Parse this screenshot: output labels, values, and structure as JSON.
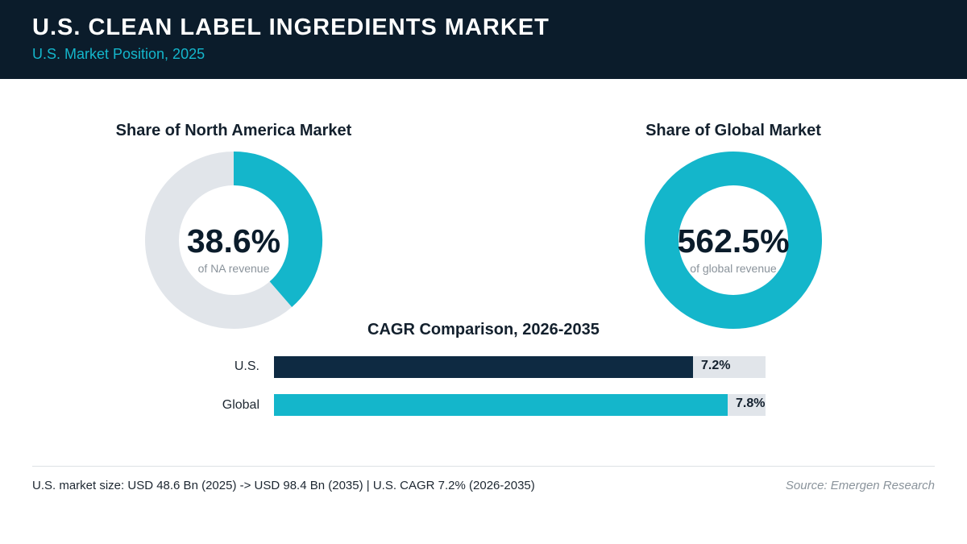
{
  "header": {
    "title": "U.S. CLEAN LABEL INGREDIENTS MARKET",
    "subtitle": "U.S. Market Position, 2025"
  },
  "colors": {
    "accent": "#14b6cb",
    "dark": "#0e2a42",
    "track": "#e1e5ea",
    "header_bg": "#0b1c2b"
  },
  "chart_data": [
    {
      "type": "pie",
      "title": "Share of North America Market",
      "value_label": "38.6%",
      "center_caption": "of NA revenue",
      "value": 38.6
    },
    {
      "type": "pie",
      "title": "Share of Global Market",
      "value_label": "562.5%",
      "center_caption": "of global revenue",
      "value": 562.5
    },
    {
      "type": "bar",
      "orientation": "horizontal",
      "title": "CAGR Comparison, 2026-2035",
      "categories": [
        "U.S.",
        "Global"
      ],
      "values": [
        7.2,
        7.8
      ],
      "value_labels": [
        "7.2%",
        "7.8%"
      ],
      "xlim": [
        0,
        8.45
      ]
    }
  ],
  "footer": {
    "note": "U.S. market size: USD 48.6 Bn (2025) -> USD 98.4 Bn (2035)  |  U.S. CAGR 7.2% (2026-2035)",
    "source": "Source: Emergen Research"
  }
}
